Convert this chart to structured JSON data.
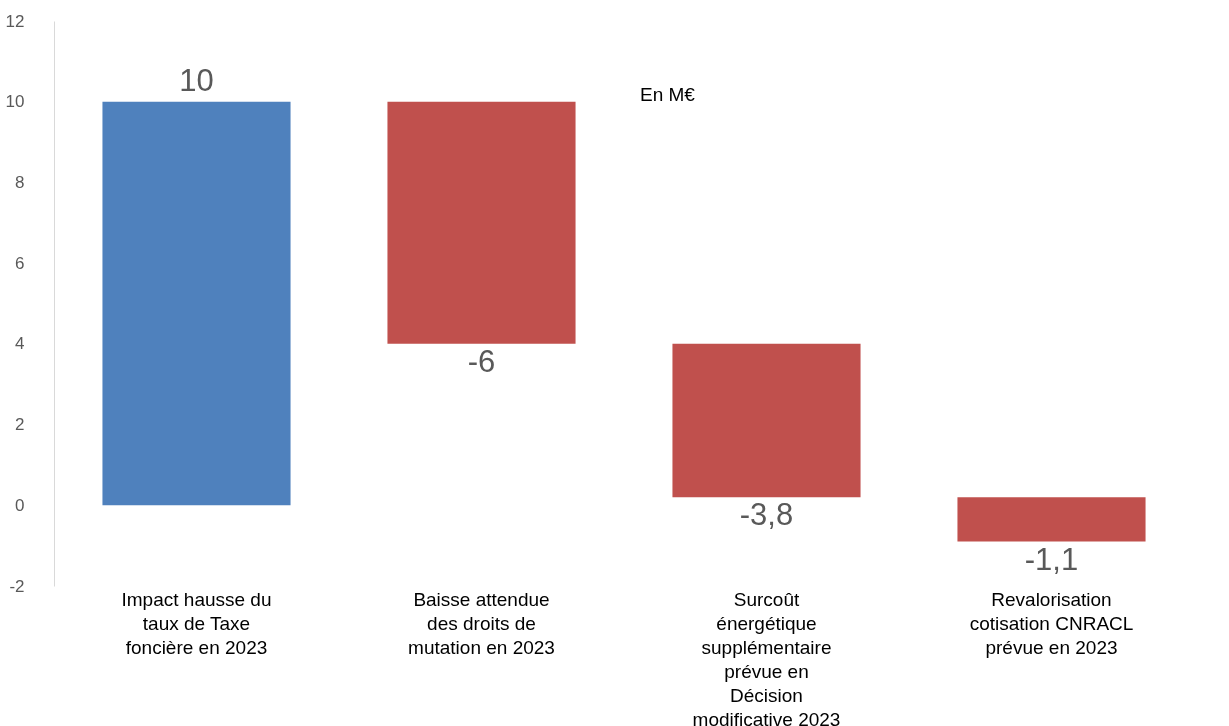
{
  "chart_data": {
    "type": "bar",
    "categories": [
      "Impact hausse du taux de Taxe foncière en 2023",
      "Baisse attendue des droits de mutation en 2023",
      "Surcoût énergétique supplémentaire prévue en Décision modificative 2023",
      "Revalorisation cotisation CNRACL prévue en 2023"
    ],
    "values": [
      10,
      -6,
      -3.8,
      -1.1
    ],
    "base": [
      0,
      10,
      4,
      0.2
    ],
    "colors": [
      "#4f81bd",
      "#c0504d",
      "#c0504d",
      "#c0504d"
    ],
    "value_labels": [
      "10",
      "-6",
      "-3,8",
      "-1,1"
    ],
    "ylim": [
      -2,
      12
    ],
    "yticks": [
      -2,
      0,
      2,
      4,
      6,
      8,
      10,
      12
    ],
    "grid": false,
    "annotations": [
      "En M€"
    ]
  }
}
